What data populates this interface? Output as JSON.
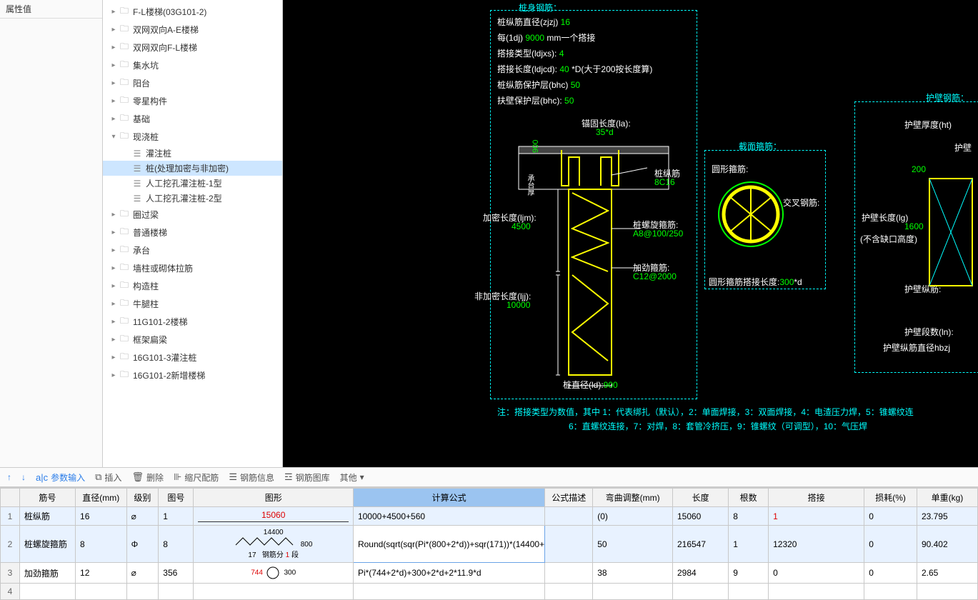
{
  "propPanel": {
    "header": "属性值"
  },
  "tree": [
    {
      "lvl": 0,
      "icon": "folder",
      "arrow": "▸",
      "label": "F-L楼梯(03G101-2)",
      "sel": false
    },
    {
      "lvl": 0,
      "icon": "folder",
      "arrow": "▸",
      "label": "双网双向A-E楼梯",
      "sel": false
    },
    {
      "lvl": 0,
      "icon": "folder",
      "arrow": "▸",
      "label": "双网双向F-L楼梯",
      "sel": false
    },
    {
      "lvl": 0,
      "icon": "folder",
      "arrow": "▸",
      "label": "集水坑",
      "sel": false
    },
    {
      "lvl": 0,
      "icon": "folder",
      "arrow": "▸",
      "label": "阳台",
      "sel": false
    },
    {
      "lvl": 0,
      "icon": "folder",
      "arrow": "▸",
      "label": "零星构件",
      "sel": false
    },
    {
      "lvl": 0,
      "icon": "folder",
      "arrow": "▸",
      "label": "基础",
      "sel": false
    },
    {
      "lvl": 0,
      "icon": "folder",
      "arrow": "▾",
      "label": "现浇桩",
      "sel": false
    },
    {
      "lvl": 1,
      "icon": "item",
      "arrow": "",
      "label": "灌注桩",
      "sel": false
    },
    {
      "lvl": 1,
      "icon": "item",
      "arrow": "",
      "label": "桩(处理加密与非加密)",
      "sel": true
    },
    {
      "lvl": 1,
      "icon": "item",
      "arrow": "",
      "label": "人工挖孔灌注桩-1型",
      "sel": false
    },
    {
      "lvl": 1,
      "icon": "item",
      "arrow": "",
      "label": "人工挖孔灌注桩-2型",
      "sel": false
    },
    {
      "lvl": 0,
      "icon": "folder",
      "arrow": "▸",
      "label": "圈过梁",
      "sel": false
    },
    {
      "lvl": 0,
      "icon": "folder",
      "arrow": "▸",
      "label": "普通楼梯",
      "sel": false
    },
    {
      "lvl": 0,
      "icon": "folder",
      "arrow": "▸",
      "label": "承台",
      "sel": false
    },
    {
      "lvl": 0,
      "icon": "folder",
      "arrow": "▸",
      "label": "墙柱或砌体拉筋",
      "sel": false
    },
    {
      "lvl": 0,
      "icon": "folder",
      "arrow": "▸",
      "label": "构造柱",
      "sel": false
    },
    {
      "lvl": 0,
      "icon": "folder",
      "arrow": "▸",
      "label": "牛腿柱",
      "sel": false
    },
    {
      "lvl": 0,
      "icon": "folder",
      "arrow": "▸",
      "label": "11G101-2楼梯",
      "sel": false
    },
    {
      "lvl": 0,
      "icon": "folder",
      "arrow": "▸",
      "label": "框架扁梁",
      "sel": false
    },
    {
      "lvl": 0,
      "icon": "folder",
      "arrow": "▸",
      "label": "16G101-3灌注桩",
      "sel": false
    },
    {
      "lvl": 0,
      "icon": "folder",
      "arrow": "▸",
      "label": "16G101-2新增楼梯",
      "sel": false
    }
  ],
  "diagram": {
    "section1_title": "桩身钢筋：",
    "p1_label": "桩纵筋直径(zjzj)",
    "p1_val": "16",
    "p2_label": "每(1dj)",
    "p2_val": "9000",
    "p2_suffix": " mm一个搭接",
    "p3_label": "搭接类型(ldjxs):",
    "p3_val": "4",
    "p4_label": "搭接长度(ldjcd):",
    "p4_val": "40",
    "p4_suffix": "*D(大于200按长度算)",
    "p5_label": "桩纵筋保护层(bhc)",
    "p5_val": "50",
    "p6_label": "扶壁保护层(bhc):",
    "p6_val": "50",
    "anchor_label": "锚固长度(la):",
    "anchor_val": "35*d",
    "vbar_label": "桩纵筋",
    "vbar_val": "8C16",
    "jiami_label": "加密长度(ljm):",
    "jiami_val": "4500",
    "spiral_label": "桩螺旋箍筋:",
    "spiral_val": "A8@100/250",
    "jiajin_label": "加劲箍筋:",
    "jiajin_val": "C12@2000",
    "feijiami_label": "非加密长度(ljj):",
    "feijiami_val": "10000",
    "dia_label": "桩直径(ld):",
    "dia_val": "900",
    "cap_ht": "900",
    "sec2_title": "截面箍筋：",
    "ring_label": "圆形箍筋:",
    "cross_label": "交叉钢筋:",
    "ring_len_label": "圆形箍筋搭接长度:",
    "ring_len_val": "300",
    "ring_len_suffix": "*d",
    "sec3_title": "护壁钢筋：",
    "hb_ht_label": "护壁厚度(ht)",
    "hb_ht_val": "200",
    "hb_note": "护壁",
    "hb_lg_label": "护壁长度(lg)",
    "hb_lg_val": "1600",
    "hb_lg_note": "(不含缺口高度)",
    "hb_long_label": "护壁纵筋:",
    "hb_ln_label": "护壁段数(ln):",
    "hb_zj_label": "护壁纵筋直径hbzj",
    "note_prefix": "注：搭接类型为数值，其中 1：代表绑扎（默认），2：单面焊接，3：双面焊接，4：电渣压力焊，5：锥螺纹连",
    "note_line2": "6：直螺纹连接，7：对焊，8：套管冷挤压，9：锥螺纹（可调型），10：气压焊"
  },
  "toolbar": {
    "b1": "参数输入",
    "b2": "插入",
    "b3": "删除",
    "b4": "缩尺配筋",
    "b5": "钢筋信息",
    "b6": "钢筋图库",
    "b7": "其他"
  },
  "table": {
    "cols": [
      "",
      "筋号",
      "直径(mm)",
      "级别",
      "图号",
      "图形",
      "计算公式",
      "公式描述",
      "弯曲调整(mm)",
      "长度",
      "根数",
      "搭接",
      "损耗(%)",
      "单重(kg)"
    ],
    "rows": [
      {
        "n": "1",
        "name": "桩纵筋",
        "dia": "16",
        "lvl": "⌀",
        "tno": "1",
        "shape_txt": "15060",
        "formula": "10000+4500+560",
        "desc": "",
        "bend": "(0)",
        "len": "15060",
        "cnt": "8",
        "lap": "1",
        "loss": "0",
        "wt": "23.795"
      },
      {
        "n": "2",
        "name": "桩螺旋箍筋",
        "dia": "8",
        "lvl": "Φ",
        "tno": "8",
        "shape_txt": "14400 / 800 / 17 钢筋分 1 段",
        "formula": "Round(sqrt(sqr(Pi*(800+2*d))+sqr(171))*(14400+2*d)/171/1)",
        "desc": "",
        "bend": "50",
        "len": "216547",
        "cnt": "1",
        "lap": "12320",
        "loss": "0",
        "wt": "90.402"
      },
      {
        "n": "3",
        "name": "加劲箍筋",
        "dia": "12",
        "lvl": "⌀",
        "tno": "356",
        "shape_txt": "744 ○ 300",
        "formula": "Pi*(744+2*d)+300+2*d+2*11.9*d",
        "desc": "",
        "bend": "38",
        "len": "2984",
        "cnt": "9",
        "lap": "0",
        "loss": "0",
        "wt": "2.65"
      },
      {
        "n": "4",
        "name": "",
        "dia": "",
        "lvl": "",
        "tno": "",
        "shape_txt": "",
        "formula": "",
        "desc": "",
        "bend": "",
        "len": "",
        "cnt": "",
        "lap": "",
        "loss": "",
        "wt": ""
      }
    ]
  }
}
